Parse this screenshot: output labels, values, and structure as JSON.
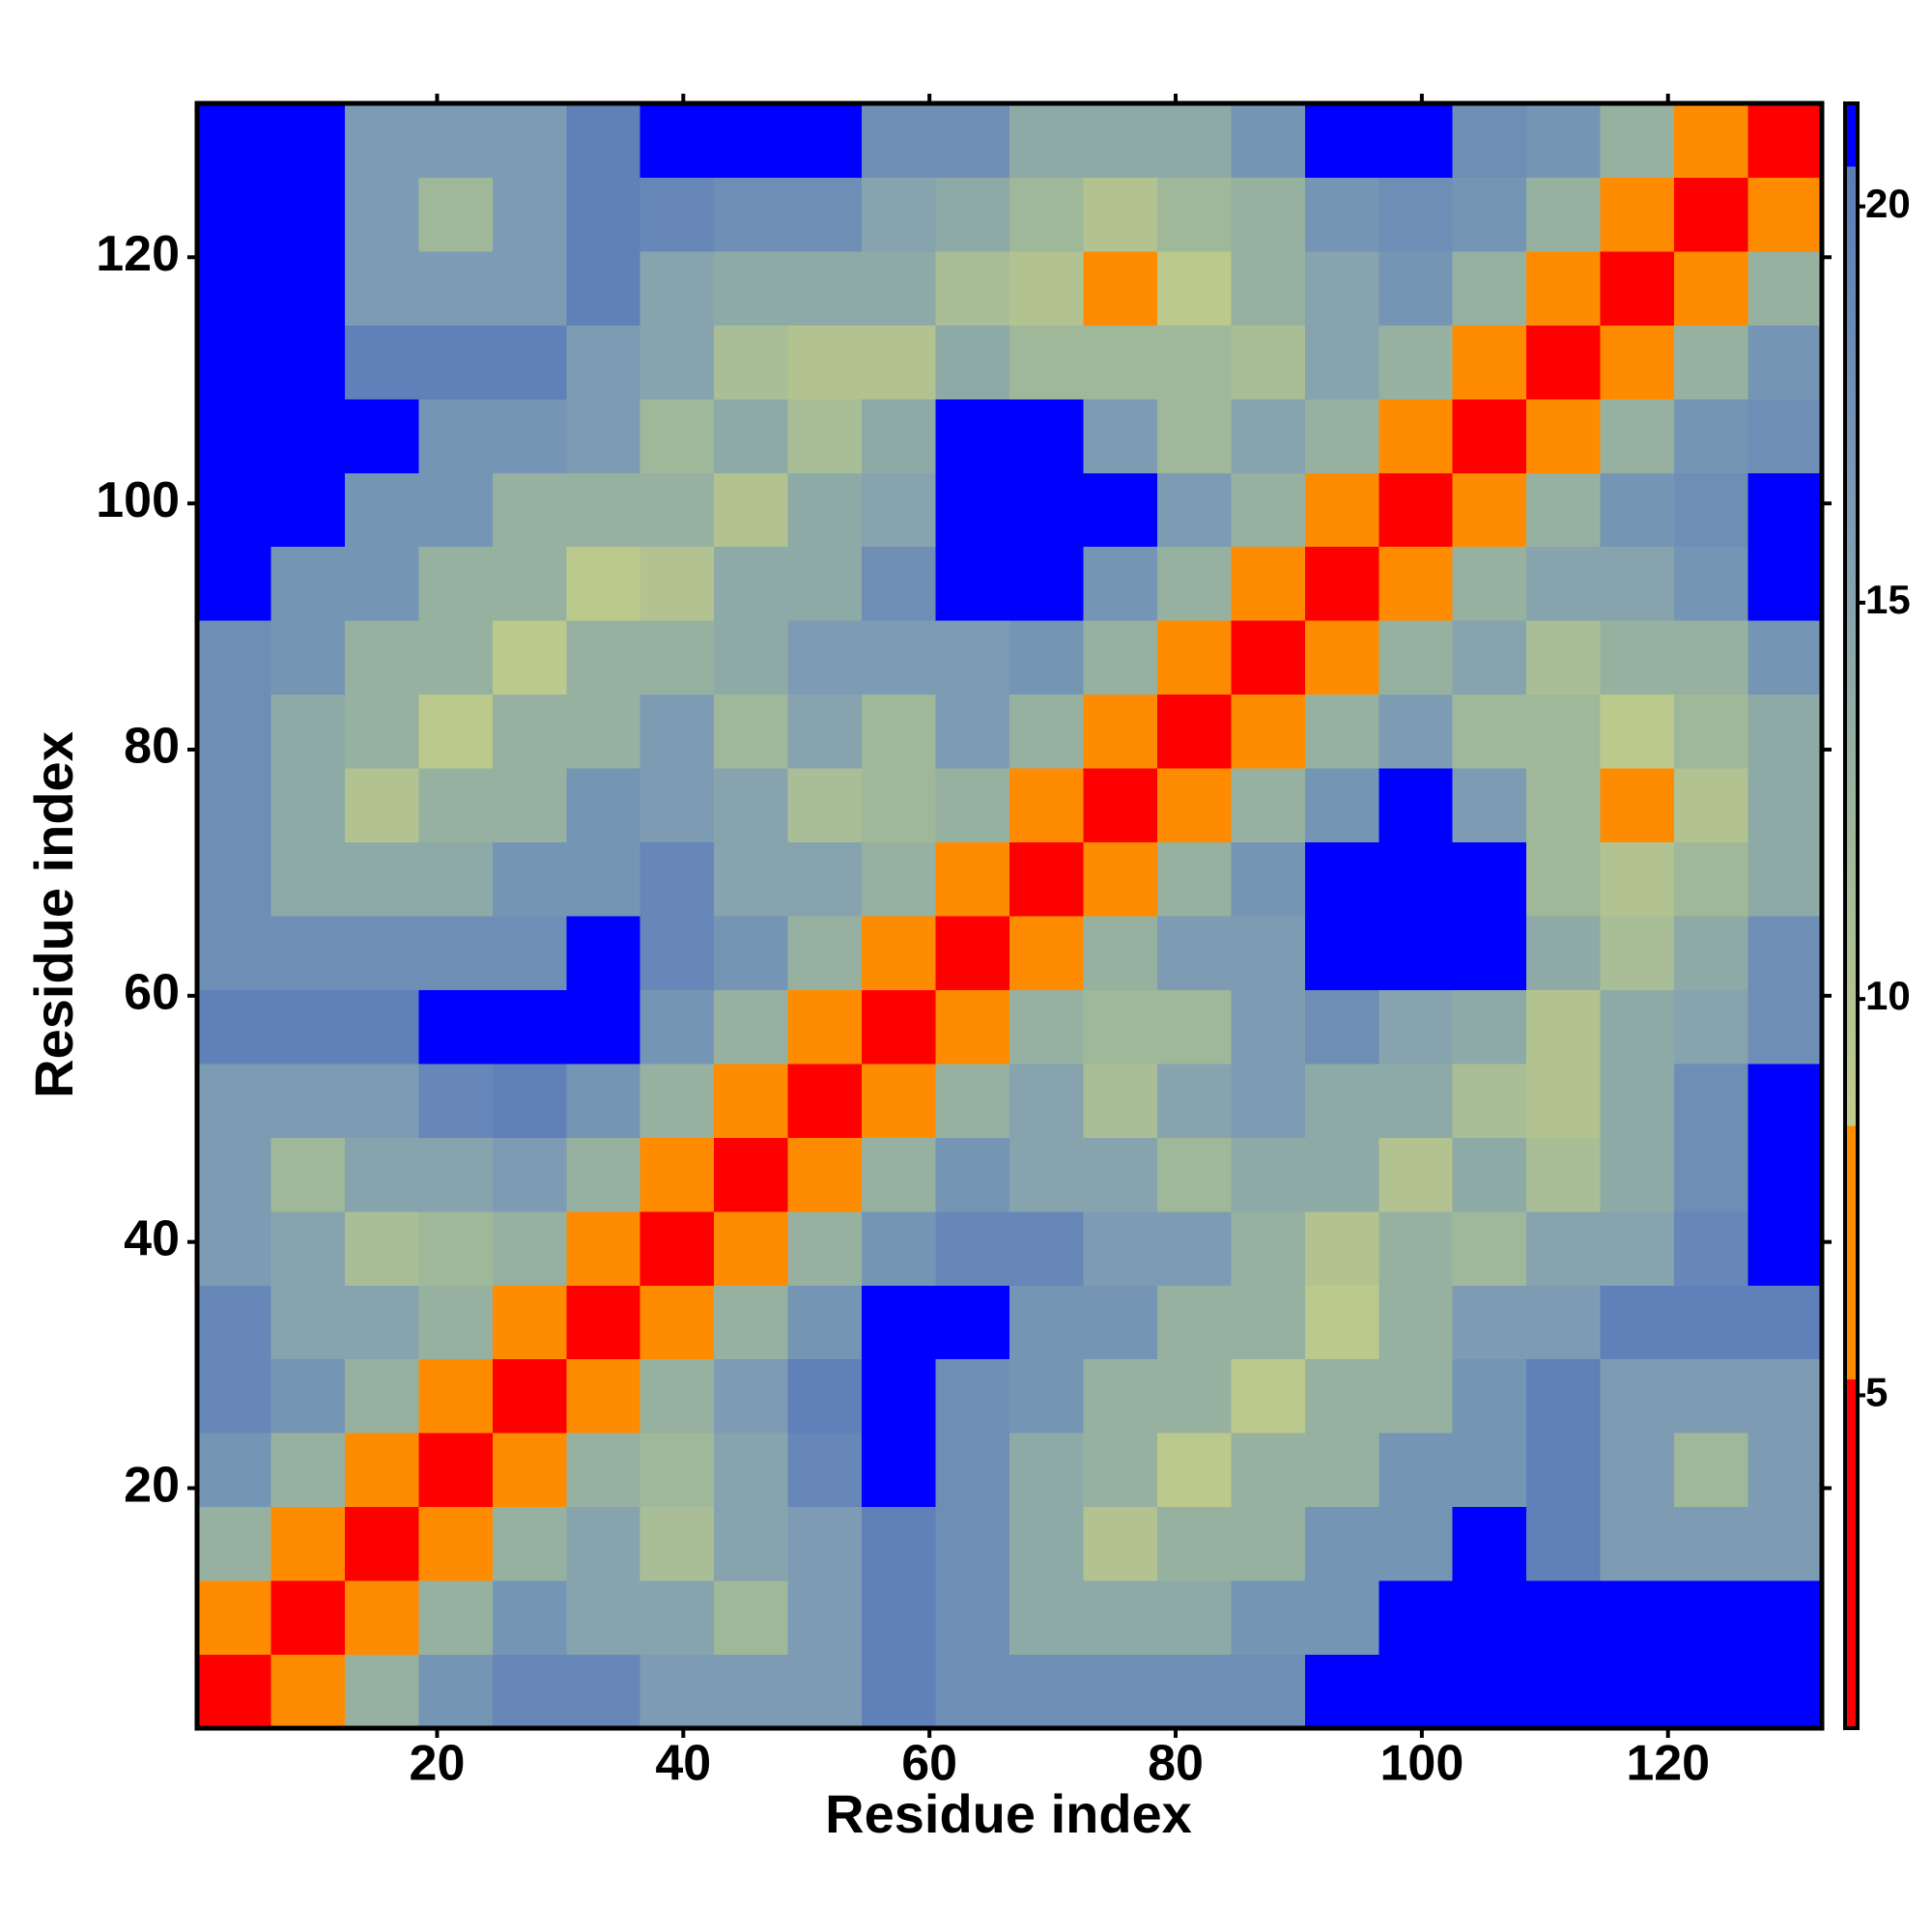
{
  "chart_data": {
    "type": "heatmap",
    "xlabel": "Residue index",
    "ylabel": "Residue index",
    "xlim": [
      0.5,
      132.5
    ],
    "ylim": [
      0.5,
      132.5
    ],
    "xticks": [
      20,
      40,
      60,
      80,
      100,
      120
    ],
    "yticks": [
      20,
      40,
      60,
      80,
      100,
      120
    ],
    "xbins": [
      0.5,
      6.5,
      12.5,
      18.5,
      24.5,
      30.5,
      36.5,
      42.5,
      48.5,
      54.5,
      60.5,
      66.5,
      72.5,
      78.5,
      84.5,
      90.5,
      96.5,
      102.5,
      108.5,
      114.5,
      120.5,
      126.5,
      132.5
    ],
    "ybins": [
      0.5,
      6.5,
      12.5,
      18.5,
      24.5,
      30.5,
      36.5,
      42.5,
      48.5,
      54.5,
      60.5,
      66.5,
      72.5,
      78.5,
      84.5,
      90.5,
      96.5,
      102.5,
      108.5,
      114.5,
      120.5,
      126.5,
      132.5
    ],
    "values": [
      [
        3,
        8,
        13,
        17,
        19,
        19,
        16,
        16,
        16,
        20,
        18,
        18,
        18,
        18,
        18,
        21,
        21,
        21,
        21,
        21,
        21,
        21
      ],
      [
        8,
        3,
        8,
        13,
        17,
        15,
        15,
        12,
        16,
        20,
        18,
        14,
        14,
        14,
        17,
        17,
        21,
        21,
        21,
        21,
        21,
        21
      ],
      [
        13,
        8,
        3,
        8,
        13,
        15,
        11,
        15,
        16,
        20,
        18,
        14,
        10,
        13,
        13,
        17,
        17,
        21,
        20,
        16,
        16,
        16
      ],
      [
        17,
        13,
        8,
        3,
        8,
        13,
        12,
        15,
        19,
        21,
        18,
        14,
        13,
        9,
        13,
        13,
        17,
        17,
        20,
        16,
        12,
        16
      ],
      [
        19,
        17,
        13,
        8,
        3,
        8,
        13,
        16,
        20,
        21,
        18,
        17,
        13,
        13,
        9,
        13,
        13,
        17,
        20,
        16,
        16,
        16
      ],
      [
        19,
        15,
        15,
        13,
        8,
        3,
        8,
        13,
        17,
        21,
        21,
        17,
        17,
        13,
        13,
        9,
        13,
        16,
        16,
        20,
        20,
        20
      ],
      [
        16,
        15,
        11,
        12,
        13,
        8,
        3,
        8,
        13,
        17,
        19,
        19,
        16,
        16,
        13,
        10,
        13,
        12,
        15,
        15,
        19,
        21
      ],
      [
        16,
        12,
        15,
        15,
        16,
        13,
        8,
        3,
        8,
        13,
        17,
        15,
        15,
        12,
        14,
        14,
        10,
        14,
        11,
        14,
        18,
        21
      ],
      [
        16,
        16,
        16,
        19,
        20,
        17,
        13,
        8,
        3,
        8,
        13,
        15,
        11,
        15,
        16,
        14,
        14,
        11,
        10,
        14,
        18,
        21
      ],
      [
        20,
        20,
        20,
        21,
        21,
        21,
        17,
        13,
        8,
        3,
        8,
        13,
        12,
        12,
        16,
        18,
        15,
        14,
        10,
        14,
        15,
        18
      ],
      [
        18,
        18,
        18,
        18,
        18,
        21,
        19,
        17,
        13,
        8,
        3,
        8,
        13,
        16,
        16,
        21,
        21,
        21,
        14,
        11,
        14,
        18
      ],
      [
        18,
        14,
        14,
        14,
        17,
        17,
        19,
        15,
        15,
        13,
        8,
        3,
        8,
        13,
        17,
        21,
        21,
        21,
        12,
        10,
        12,
        14
      ],
      [
        18,
        14,
        10,
        13,
        13,
        17,
        16,
        15,
        11,
        12,
        13,
        8,
        3,
        8,
        13,
        17,
        21,
        16,
        12,
        8,
        10,
        14
      ],
      [
        18,
        14,
        13,
        9,
        13,
        13,
        16,
        12,
        15,
        12,
        16,
        13,
        8,
        3,
        8,
        13,
        16,
        12,
        12,
        9,
        12,
        14
      ],
      [
        18,
        17,
        13,
        13,
        9,
        13,
        13,
        14,
        16,
        16,
        16,
        17,
        13,
        8,
        3,
        8,
        13,
        15,
        11,
        13,
        13,
        17
      ],
      [
        21,
        17,
        17,
        13,
        13,
        9,
        10,
        14,
        14,
        18,
        21,
        21,
        17,
        13,
        8,
        3,
        8,
        13,
        15,
        15,
        17,
        21
      ],
      [
        21,
        21,
        17,
        17,
        13,
        13,
        13,
        10,
        14,
        15,
        21,
        21,
        21,
        16,
        13,
        8,
        3,
        8,
        13,
        17,
        18,
        21
      ],
      [
        21,
        21,
        21,
        17,
        17,
        16,
        12,
        14,
        11,
        14,
        21,
        21,
        16,
        12,
        15,
        13,
        8,
        3,
        8,
        13,
        17,
        18
      ],
      [
        21,
        21,
        20,
        20,
        20,
        16,
        15,
        11,
        10,
        10,
        14,
        12,
        12,
        12,
        11,
        15,
        13,
        8,
        3,
        8,
        13,
        17
      ],
      [
        21,
        21,
        16,
        16,
        16,
        20,
        15,
        14,
        14,
        14,
        11,
        10,
        8,
        9,
        13,
        15,
        17,
        13,
        8,
        3,
        8,
        13
      ],
      [
        21,
        21,
        16,
        12,
        16,
        20,
        19,
        18,
        18,
        15,
        14,
        12,
        10,
        12,
        13,
        17,
        18,
        17,
        13,
        8,
        3,
        8
      ],
      [
        21,
        21,
        16,
        16,
        16,
        20,
        21,
        21,
        21,
        18,
        18,
        14,
        14,
        14,
        17,
        21,
        21,
        18,
        17,
        13,
        8,
        3
      ]
    ],
    "colorbar": {
      "lim": [
        0.8,
        21.3
      ],
      "ticks": [
        5,
        10,
        15,
        20
      ],
      "stops": [
        [
          0.8,
          "#ff0000"
        ],
        [
          5.2,
          "#ff0000"
        ],
        [
          5.2,
          "#ff8c00"
        ],
        [
          8.4,
          "#ff8c00"
        ],
        [
          8.4,
          "#c2cc8a"
        ],
        [
          12,
          "#9fb89a"
        ],
        [
          16,
          "#7d9cb4"
        ],
        [
          20.5,
          "#5b7cb8"
        ],
        [
          20.5,
          "#0000ff"
        ],
        [
          21.3,
          "#0000ff"
        ]
      ]
    }
  }
}
